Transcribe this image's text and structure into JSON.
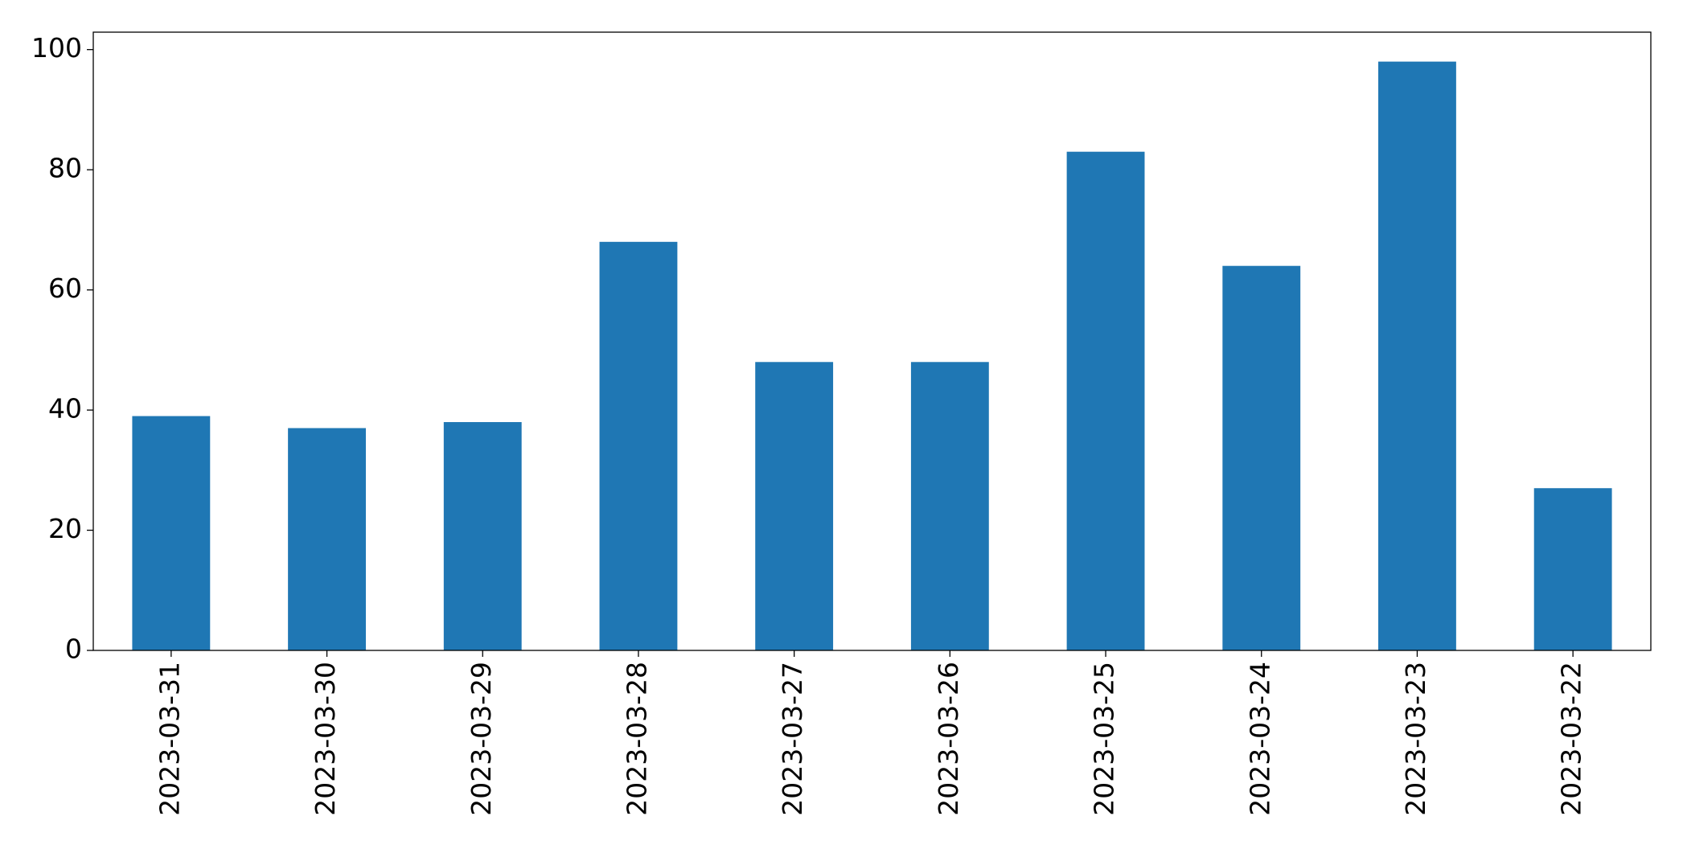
{
  "chart_data": {
    "type": "bar",
    "categories": [
      "2023-03-31",
      "2023-03-30",
      "2023-03-29",
      "2023-03-28",
      "2023-03-27",
      "2023-03-26",
      "2023-03-25",
      "2023-03-24",
      "2023-03-23",
      "2023-03-22"
    ],
    "values": [
      39,
      37,
      38,
      68,
      48,
      48,
      83,
      64,
      98,
      27
    ],
    "color": "#1f77b4",
    "ylim": [
      0,
      102.9
    ],
    "yticks": [
      0,
      20,
      40,
      60,
      80,
      100
    ],
    "grid": false
  }
}
